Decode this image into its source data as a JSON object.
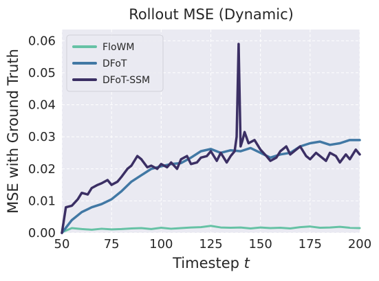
{
  "chart_data": {
    "type": "line",
    "title": "Rollout MSE (Dynamic)",
    "xlabel": "Timestep",
    "xlabel_var": "t",
    "ylabel": "MSE with Ground Truth",
    "xlim": [
      50,
      200
    ],
    "ylim": [
      0,
      0.0635
    ],
    "xticks": [
      50,
      75,
      100,
      125,
      150,
      175,
      200
    ],
    "xtick_labels": [
      "50",
      "75",
      "100",
      "125",
      "150",
      "175",
      "200"
    ],
    "yticks": [
      0,
      0.01,
      0.02,
      0.03,
      0.04,
      0.05,
      0.06
    ],
    "ytick_labels": [
      "0.00",
      "0.01",
      "0.02",
      "0.03",
      "0.04",
      "0.05",
      "0.06"
    ],
    "grid": true,
    "legend_position": "top-left",
    "background_color": "#eaeaf2",
    "series": [
      {
        "name": "FloWM",
        "color": "#66c2a5",
        "x": [
          50,
          55,
          60,
          65,
          70,
          75,
          80,
          85,
          90,
          95,
          100,
          105,
          110,
          115,
          120,
          125,
          130,
          135,
          140,
          145,
          150,
          155,
          160,
          165,
          170,
          175,
          180,
          185,
          190,
          195,
          200
        ],
        "y": [
          0.0002,
          0.0015,
          0.0012,
          0.001,
          0.0013,
          0.0011,
          0.0012,
          0.0014,
          0.0015,
          0.0012,
          0.0016,
          0.0013,
          0.0015,
          0.0017,
          0.0018,
          0.0022,
          0.0017,
          0.0016,
          0.0017,
          0.0014,
          0.0017,
          0.0015,
          0.0016,
          0.0014,
          0.0018,
          0.002,
          0.0016,
          0.0017,
          0.0019,
          0.0016,
          0.0015
        ]
      },
      {
        "name": "DFoT",
        "color": "#4178a4",
        "x": [
          50,
          55,
          60,
          65,
          70,
          75,
          80,
          85,
          90,
          95,
          100,
          105,
          110,
          115,
          120,
          125,
          130,
          135,
          140,
          145,
          150,
          155,
          160,
          165,
          170,
          175,
          180,
          185,
          190,
          195,
          200
        ],
        "y": [
          0.0,
          0.004,
          0.0065,
          0.008,
          0.009,
          0.0105,
          0.013,
          0.016,
          0.018,
          0.02,
          0.0208,
          0.0215,
          0.0218,
          0.0235,
          0.0255,
          0.0262,
          0.025,
          0.0258,
          0.0255,
          0.0265,
          0.025,
          0.0235,
          0.0245,
          0.025,
          0.027,
          0.028,
          0.0285,
          0.0275,
          0.028,
          0.029,
          0.029
        ]
      },
      {
        "name": "DFoT-SSM",
        "color": "#3b2f64",
        "x": [
          50,
          52,
          55,
          58,
          60,
          63,
          65,
          68,
          70,
          73,
          75,
          78,
          80,
          83,
          85,
          88,
          90,
          93,
          95,
          98,
          100,
          103,
          105,
          108,
          110,
          113,
          115,
          118,
          120,
          123,
          125,
          128,
          130,
          133,
          135,
          137,
          138,
          139,
          140,
          141,
          142,
          144,
          147,
          150,
          153,
          155,
          158,
          160,
          163,
          165,
          168,
          170,
          173,
          175,
          178,
          180,
          183,
          185,
          188,
          190,
          193,
          195,
          198,
          200
        ],
        "y": [
          0.0,
          0.008,
          0.0085,
          0.0105,
          0.0125,
          0.012,
          0.014,
          0.015,
          0.0155,
          0.0165,
          0.015,
          0.016,
          0.0175,
          0.02,
          0.021,
          0.024,
          0.023,
          0.0205,
          0.021,
          0.02,
          0.0215,
          0.0205,
          0.022,
          0.02,
          0.023,
          0.024,
          0.0215,
          0.022,
          0.0235,
          0.024,
          0.0255,
          0.0225,
          0.025,
          0.022,
          0.024,
          0.0255,
          0.03,
          0.059,
          0.027,
          0.029,
          0.0315,
          0.028,
          0.029,
          0.026,
          0.024,
          0.0225,
          0.0235,
          0.0255,
          0.027,
          0.0245,
          0.026,
          0.027,
          0.024,
          0.023,
          0.025,
          0.024,
          0.0225,
          0.025,
          0.024,
          0.022,
          0.0245,
          0.023,
          0.026,
          0.0245
        ]
      }
    ]
  }
}
